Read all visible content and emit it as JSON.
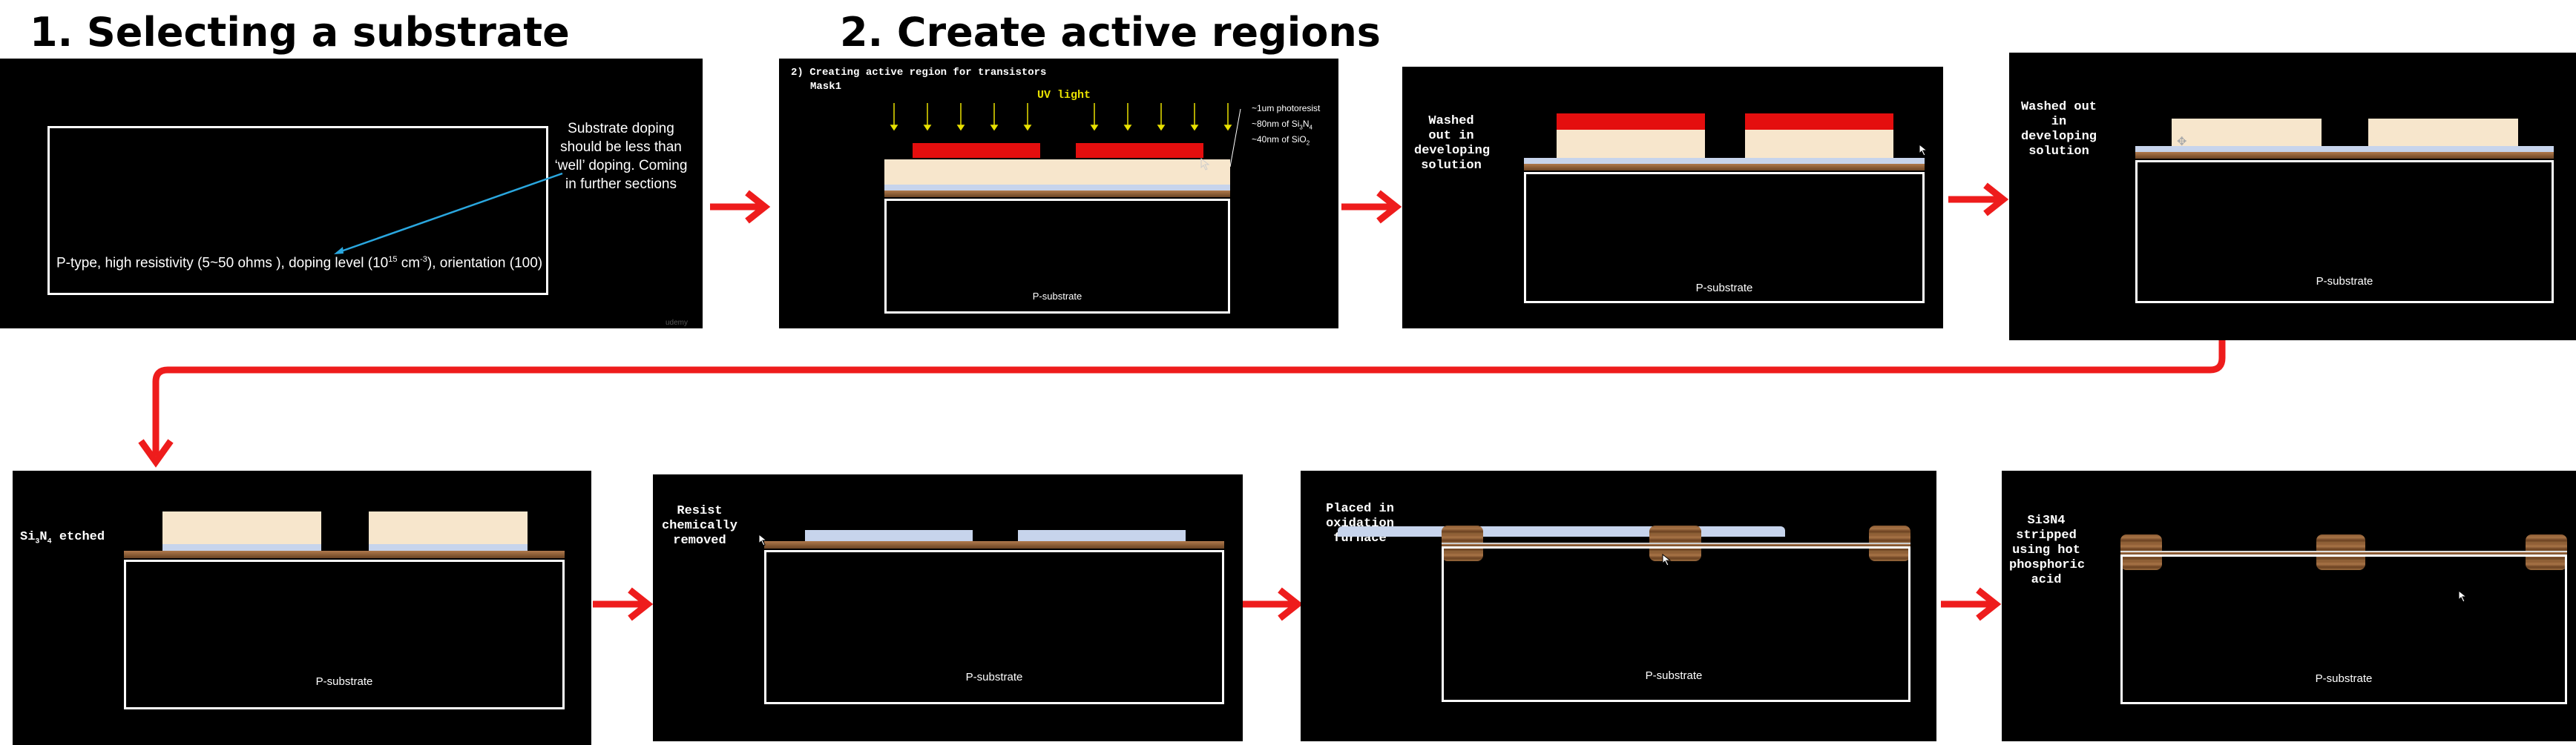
{
  "headings": {
    "h1": "1. Selecting a substrate",
    "h2": "2. Create active regions"
  },
  "panel1": {
    "substrate_text": "P-type, high resistivity (5~50 ohms ), doping level (10",
    "substrate_sup": "15",
    "substrate_mid": " cm",
    "substrate_sup2": "-3",
    "substrate_end": "), orientation (100)",
    "note": "Substrate doping should be less than ‘well’ doping. Coming in further sections",
    "watermark": "udemy"
  },
  "panel2": {
    "title": "2) Creating active region for transistors",
    "mask": "Mask1",
    "uv_label": "UV light",
    "legend": [
      "~1um photoresist",
      "~80nm of Si",
      "~40nm of SiO"
    ],
    "legend_sub": [
      "",
      "3",
      "2"
    ],
    "legend_sub2": [
      "",
      "N",
      ""
    ],
    "legend_sub3": [
      "",
      "4",
      ""
    ],
    "substrate_label": "P-substrate"
  },
  "panel3": {
    "caption": "Washed out in\ndeveloping\nsolution",
    "substrate_label": "P-substrate"
  },
  "panel4": {
    "caption": "Washed out in\ndeveloping\nsolution",
    "substrate_label": "P-substrate"
  },
  "panel5": {
    "caption_pre": "Si",
    "caption_sub1": "3",
    "caption_mid": "N",
    "caption_sub2": "4",
    "caption_post": " etched",
    "substrate_label": "P-substrate"
  },
  "panel6": {
    "caption": "Resist\nchemically\nremoved",
    "substrate_label": "P-substrate"
  },
  "panel7": {
    "caption": "Placed in\noxidation\nfurnace",
    "substrate_label": "P-substrate"
  },
  "panel8": {
    "caption": "Si3N4\nstripped\nusing hot\nphosphoric\nacid",
    "substrate_label": "P-substrate"
  },
  "colors": {
    "photoresist": "#e40e0e",
    "nitride": "#f7e6cc",
    "oxide": "#c7d4ec",
    "arrow": "#ee1c1c",
    "uv": "#e8e000",
    "pointer": "#2aa7df"
  }
}
